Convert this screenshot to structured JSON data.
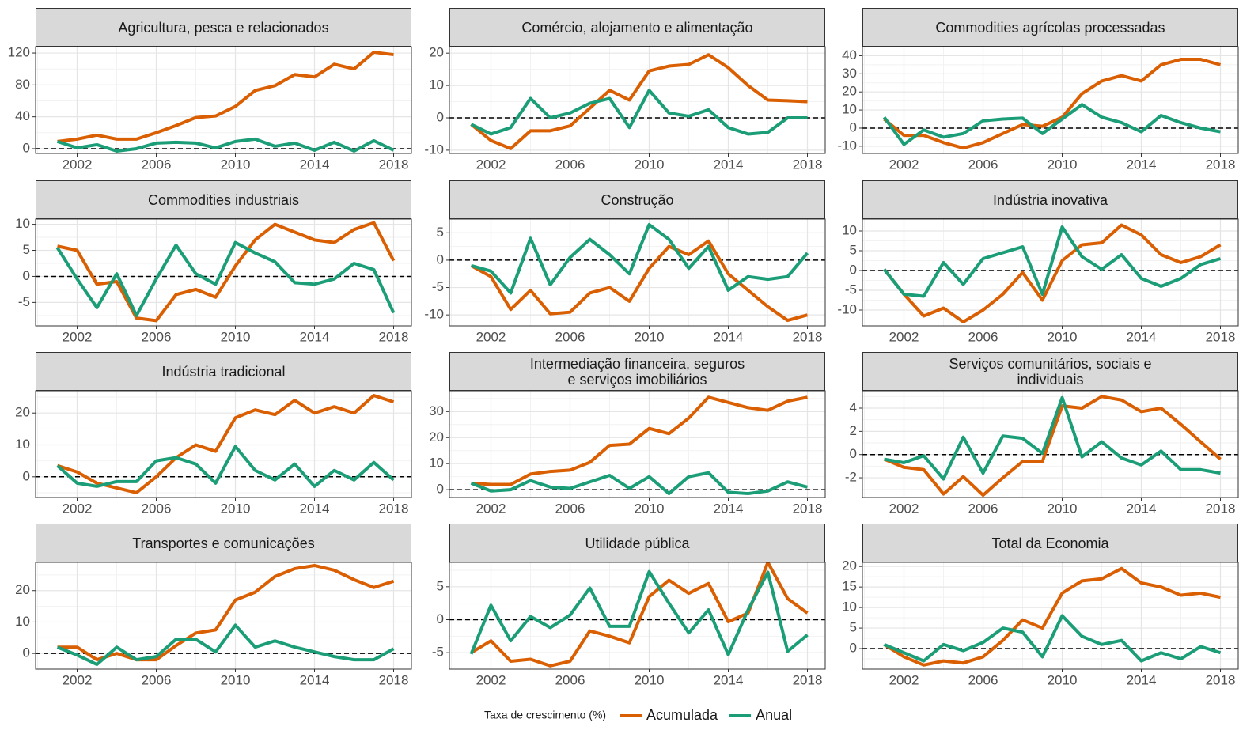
{
  "legend_title": "Taxa de crescimento (%)",
  "chart_data": [
    {
      "type": "line",
      "title": "Agricultura, pesca e relacionados",
      "x": [
        2001,
        2002,
        2003,
        2004,
        2005,
        2006,
        2007,
        2008,
        2009,
        2010,
        2011,
        2012,
        2013,
        2014,
        2015,
        2016,
        2017,
        2018
      ],
      "xlim": [
        1999.9,
        2018.9
      ],
      "xticks": [
        2002,
        2006,
        2010,
        2014,
        2018
      ],
      "ylim": [
        -6,
        128
      ],
      "yticks": [
        0,
        40,
        80,
        120
      ],
      "grid": true,
      "hline": 0,
      "series": [
        {
          "name": "Acumulada",
          "color": "#d95f02",
          "values": [
            9,
            12,
            17,
            12,
            12,
            20,
            29,
            39,
            41,
            53,
            73,
            79,
            93,
            90,
            106,
            100,
            121,
            118
          ]
        },
        {
          "name": "Anual",
          "color": "#1b9e77",
          "values": [
            9,
            1,
            5,
            -3,
            0,
            7,
            8,
            7,
            1,
            9,
            12,
            3,
            7,
            -2,
            8,
            -3,
            10,
            -2
          ]
        }
      ]
    },
    {
      "type": "line",
      "title": "Comércio, alojamento e alimentação",
      "x": [
        2001,
        2002,
        2003,
        2004,
        2005,
        2006,
        2007,
        2008,
        2009,
        2010,
        2011,
        2012,
        2013,
        2014,
        2015,
        2016,
        2017,
        2018
      ],
      "xlim": [
        1999.9,
        2018.9
      ],
      "xticks": [
        2002,
        2006,
        2010,
        2014,
        2018
      ],
      "ylim": [
        -11,
        22
      ],
      "yticks": [
        -10,
        0,
        10,
        20
      ],
      "grid": true,
      "hline": 0,
      "series": [
        {
          "name": "Acumulada",
          "color": "#d95f02",
          "values": [
            -2,
            -7,
            -9.5,
            -4,
            -4,
            -2.5,
            3,
            8.5,
            5.5,
            14.5,
            16,
            16.5,
            19.5,
            15.5,
            10,
            5.5,
            5.3,
            5
          ]
        },
        {
          "name": "Anual",
          "color": "#1b9e77",
          "values": [
            -2,
            -5,
            -3,
            6,
            0,
            1.5,
            4.5,
            6,
            -3,
            8.5,
            1.5,
            0.5,
            2.5,
            -3,
            -5,
            -4.5,
            0,
            0
          ]
        }
      ]
    },
    {
      "type": "line",
      "title": "Commodities agrícolas processadas",
      "x": [
        2001,
        2002,
        2003,
        2004,
        2005,
        2006,
        2007,
        2008,
        2009,
        2010,
        2011,
        2012,
        2013,
        2014,
        2015,
        2016,
        2017,
        2018
      ],
      "xlim": [
        1999.9,
        2018.9
      ],
      "xticks": [
        2002,
        2006,
        2010,
        2014,
        2018
      ],
      "ylim": [
        -14,
        45
      ],
      "yticks": [
        -10,
        0,
        10,
        20,
        30,
        40
      ],
      "grid": true,
      "hline": 0,
      "series": [
        {
          "name": "Acumulada",
          "color": "#d95f02",
          "values": [
            5,
            -4,
            -4,
            -8,
            -11,
            -8,
            -3,
            2,
            1,
            6,
            19,
            26,
            29,
            26,
            35,
            38,
            38,
            35
          ]
        },
        {
          "name": "Anual",
          "color": "#1b9e77",
          "values": [
            6,
            -9,
            -1,
            -5,
            -3,
            4,
            5,
            5.5,
            -3,
            5,
            13,
            6,
            3,
            -2,
            7,
            3,
            0,
            -2
          ]
        }
      ]
    },
    {
      "type": "line",
      "title": "Commodities industriais",
      "x": [
        2001,
        2002,
        2003,
        2004,
        2005,
        2006,
        2007,
        2008,
        2009,
        2010,
        2011,
        2012,
        2013,
        2014,
        2015,
        2016,
        2017,
        2018
      ],
      "xlim": [
        1999.9,
        2018.9
      ],
      "xticks": [
        2002,
        2006,
        2010,
        2014,
        2018
      ],
      "ylim": [
        -9.5,
        11
      ],
      "yticks": [
        -5,
        0,
        5,
        10
      ],
      "grid": true,
      "hline": 0,
      "series": [
        {
          "name": "Acumulada",
          "color": "#d95f02",
          "values": [
            5.8,
            5,
            -1.5,
            -1,
            -8,
            -8.5,
            -3.5,
            -2.5,
            -4,
            2,
            7,
            10,
            8.5,
            7,
            6.5,
            9,
            10.3,
            3
          ]
        },
        {
          "name": "Anual",
          "color": "#1b9e77",
          "values": [
            5.5,
            -0.5,
            -6,
            0.5,
            -7.5,
            -0.5,
            6,
            0.5,
            -1.5,
            6.5,
            4.5,
            2.8,
            -1.2,
            -1.5,
            -0.5,
            2.5,
            1.3,
            -7
          ]
        }
      ]
    },
    {
      "type": "line",
      "title": "Construção",
      "x": [
        2001,
        2002,
        2003,
        2004,
        2005,
        2006,
        2007,
        2008,
        2009,
        2010,
        2011,
        2012,
        2013,
        2014,
        2015,
        2016,
        2017,
        2018
      ],
      "xlim": [
        1999.9,
        2018.9
      ],
      "xticks": [
        2002,
        2006,
        2010,
        2014,
        2018
      ],
      "ylim": [
        -12,
        7.5
      ],
      "yticks": [
        -10,
        -5,
        0,
        5
      ],
      "grid": true,
      "hline": 0,
      "series": [
        {
          "name": "Acumulada",
          "color": "#d95f02",
          "values": [
            -1,
            -3,
            -9,
            -5.5,
            -9.8,
            -9.5,
            -6,
            -5,
            -7.5,
            -1.5,
            2.5,
            1,
            3.5,
            -2.5,
            -5.5,
            -8.5,
            -11,
            -10
          ]
        },
        {
          "name": "Anual",
          "color": "#1b9e77",
          "values": [
            -1,
            -2,
            -6,
            4,
            -4.5,
            0.5,
            3.8,
            1,
            -2.5,
            6.5,
            3.8,
            -1.5,
            2.5,
            -5.5,
            -3,
            -3.5,
            -3,
            1.3
          ]
        }
      ]
    },
    {
      "type": "line",
      "title": "Indústria inovativa",
      "x": [
        2001,
        2002,
        2003,
        2004,
        2005,
        2006,
        2007,
        2008,
        2009,
        2010,
        2011,
        2012,
        2013,
        2014,
        2015,
        2016,
        2017,
        2018
      ],
      "xlim": [
        1999.9,
        2018.9
      ],
      "xticks": [
        2002,
        2006,
        2010,
        2014,
        2018
      ],
      "ylim": [
        -14,
        13
      ],
      "yticks": [
        -10,
        -5,
        0,
        5,
        10
      ],
      "grid": true,
      "hline": 0,
      "series": [
        {
          "name": "Acumulada",
          "color": "#d95f02",
          "values": [
            0.3,
            -6,
            -11.5,
            -9.5,
            -13,
            -10,
            -6,
            -0.5,
            -7.5,
            2.5,
            6.5,
            7,
            11.5,
            9,
            4,
            2,
            3.5,
            6.5
          ]
        },
        {
          "name": "Anual",
          "color": "#1b9e77",
          "values": [
            0.3,
            -6,
            -6.5,
            2,
            -3.5,
            3,
            4.5,
            6,
            -6,
            11,
            3.5,
            0.3,
            4,
            -2,
            -4,
            -2,
            1.5,
            3
          ]
        }
      ]
    },
    {
      "type": "line",
      "title": "Indústria tradicional",
      "x": [
        2001,
        2002,
        2003,
        2004,
        2005,
        2006,
        2007,
        2008,
        2009,
        2010,
        2011,
        2012,
        2013,
        2014,
        2015,
        2016,
        2017,
        2018
      ],
      "xlim": [
        1999.9,
        2018.9
      ],
      "xticks": [
        2002,
        2006,
        2010,
        2014,
        2018
      ],
      "ylim": [
        -6.5,
        27
      ],
      "yticks": [
        0,
        10,
        20
      ],
      "grid": true,
      "hline": 0,
      "series": [
        {
          "name": "Acumulada",
          "color": "#d95f02",
          "values": [
            3.5,
            1.5,
            -2,
            -3.5,
            -5,
            0,
            6,
            10,
            8,
            18.5,
            21,
            19.5,
            24,
            20,
            22,
            20,
            25.5,
            23.5
          ]
        },
        {
          "name": "Anual",
          "color": "#1b9e77",
          "values": [
            3.5,
            -2,
            -3,
            -1.5,
            -1.5,
            5,
            6,
            4,
            -2,
            9.5,
            2,
            -1,
            4,
            -3,
            2,
            -1,
            4.5,
            -1
          ]
        }
      ]
    },
    {
      "type": "line",
      "title": "Intermediação financeira, seguros\ne serviços imobiliários",
      "x": [
        2001,
        2002,
        2003,
        2004,
        2005,
        2006,
        2007,
        2008,
        2009,
        2010,
        2011,
        2012,
        2013,
        2014,
        2015,
        2016,
        2017,
        2018
      ],
      "xlim": [
        1999.9,
        2018.9
      ],
      "xticks": [
        2002,
        2006,
        2010,
        2014,
        2018
      ],
      "ylim": [
        -3,
        38
      ],
      "yticks": [
        0,
        10,
        20,
        30
      ],
      "grid": true,
      "hline": 0,
      "series": [
        {
          "name": "Acumulada",
          "color": "#d95f02",
          "values": [
            2.5,
            2,
            2,
            6,
            7,
            7.5,
            10.5,
            17,
            17.5,
            23.5,
            21.5,
            27.5,
            35.5,
            33.5,
            31.5,
            30.5,
            34,
            35.5
          ]
        },
        {
          "name": "Anual",
          "color": "#1b9e77",
          "values": [
            2.5,
            -0.5,
            0,
            3.5,
            1,
            0.5,
            3,
            5.5,
            0.5,
            5,
            -1.5,
            5,
            6.5,
            -1,
            -1.5,
            -0.5,
            3,
            1
          ]
        }
      ]
    },
    {
      "type": "line",
      "title": "Serviços comunitários, sociais e\nindividuais",
      "x": [
        2001,
        2002,
        2003,
        2004,
        2005,
        2006,
        2007,
        2008,
        2009,
        2010,
        2011,
        2012,
        2013,
        2014,
        2015,
        2016,
        2017,
        2018
      ],
      "xlim": [
        1999.9,
        2018.9
      ],
      "xticks": [
        2002,
        2006,
        2010,
        2014,
        2018
      ],
      "ylim": [
        -3.7,
        5.5
      ],
      "yticks": [
        -2,
        0,
        2,
        4
      ],
      "grid": true,
      "hline": 0,
      "series": [
        {
          "name": "Acumulada",
          "color": "#d95f02",
          "values": [
            -0.4,
            -1.1,
            -1.3,
            -3.4,
            -1.9,
            -3.5,
            -2,
            -0.6,
            -0.6,
            4.2,
            4,
            5,
            4.7,
            3.7,
            4,
            2.6,
            1.1,
            -0.4
          ]
        },
        {
          "name": "Anual",
          "color": "#1b9e77",
          "values": [
            -0.4,
            -0.7,
            -0.1,
            -2.1,
            1.5,
            -1.6,
            1.6,
            1.4,
            0.1,
            4.9,
            -0.2,
            1.1,
            -0.3,
            -0.9,
            0.3,
            -1.3,
            -1.3,
            -1.6
          ]
        }
      ]
    },
    {
      "type": "line",
      "title": "Transportes e comunicações",
      "x": [
        2001,
        2002,
        2003,
        2004,
        2005,
        2006,
        2007,
        2008,
        2009,
        2010,
        2011,
        2012,
        2013,
        2014,
        2015,
        2016,
        2017,
        2018
      ],
      "xlim": [
        1999.9,
        2018.9
      ],
      "xticks": [
        2002,
        2006,
        2010,
        2014,
        2018
      ],
      "ylim": [
        -5,
        29
      ],
      "yticks": [
        0,
        10,
        20
      ],
      "grid": true,
      "hline": 0,
      "series": [
        {
          "name": "Acumulada",
          "color": "#d95f02",
          "values": [
            2,
            2,
            -2,
            0,
            -2,
            -2,
            2.5,
            6.5,
            7.5,
            17,
            19.5,
            24.5,
            27,
            28,
            26.5,
            23.5,
            21,
            23
          ]
        },
        {
          "name": "Anual",
          "color": "#1b9e77",
          "values": [
            2,
            -0.5,
            -3.5,
            2,
            -2,
            -1,
            4.5,
            4.5,
            0.5,
            9,
            2,
            4,
            2,
            0.5,
            -1,
            -2,
            -2,
            1.5
          ]
        }
      ]
    },
    {
      "type": "line",
      "title": "Utilidade pública",
      "x": [
        2001,
        2002,
        2003,
        2004,
        2005,
        2006,
        2007,
        2008,
        2009,
        2010,
        2011,
        2012,
        2013,
        2014,
        2015,
        2016,
        2017,
        2018
      ],
      "xlim": [
        1999.9,
        2018.9
      ],
      "xticks": [
        2002,
        2006,
        2010,
        2014,
        2018
      ],
      "ylim": [
        -7.5,
        8.7
      ],
      "yticks": [
        -5,
        0,
        5
      ],
      "grid": true,
      "hline": 0,
      "series": [
        {
          "name": "Acumulada",
          "color": "#d95f02",
          "values": [
            -5,
            -3.2,
            -6.3,
            -6,
            -7,
            -6.3,
            -1.7,
            -2.5,
            -3.5,
            3.5,
            6,
            4,
            5.5,
            -0.3,
            1,
            8.7,
            3.2,
            1
          ]
        },
        {
          "name": "Anual",
          "color": "#1b9e77",
          "values": [
            -5.2,
            2.2,
            -3.2,
            0.5,
            -1.2,
            0.7,
            4.8,
            -1,
            -1,
            7.3,
            2.5,
            -2,
            1.5,
            -5.3,
            1.5,
            7.2,
            -4.8,
            -2.3
          ]
        }
      ]
    },
    {
      "type": "line",
      "title": "Total da Economia",
      "x": [
        2001,
        2002,
        2003,
        2004,
        2005,
        2006,
        2007,
        2008,
        2009,
        2010,
        2011,
        2012,
        2013,
        2014,
        2015,
        2016,
        2017,
        2018
      ],
      "xlim": [
        1999.9,
        2018.9
      ],
      "xticks": [
        2002,
        2006,
        2010,
        2014,
        2018
      ],
      "ylim": [
        -5,
        21
      ],
      "yticks": [
        0,
        5,
        10,
        15,
        20
      ],
      "grid": true,
      "hline": 0,
      "series": [
        {
          "name": "Acumulada",
          "color": "#d95f02",
          "values": [
            1,
            -2,
            -4,
            -3,
            -3.5,
            -2,
            2,
            7,
            5,
            13.5,
            16.5,
            17,
            19.5,
            16,
            15,
            13,
            13.5,
            12.5
          ]
        },
        {
          "name": "Anual",
          "color": "#1b9e77",
          "values": [
            1,
            -1,
            -3,
            1,
            -0.5,
            1.5,
            5,
            4,
            -2,
            8,
            3,
            1,
            2,
            -3,
            -1,
            -2.5,
            0.5,
            -1
          ]
        }
      ]
    }
  ]
}
